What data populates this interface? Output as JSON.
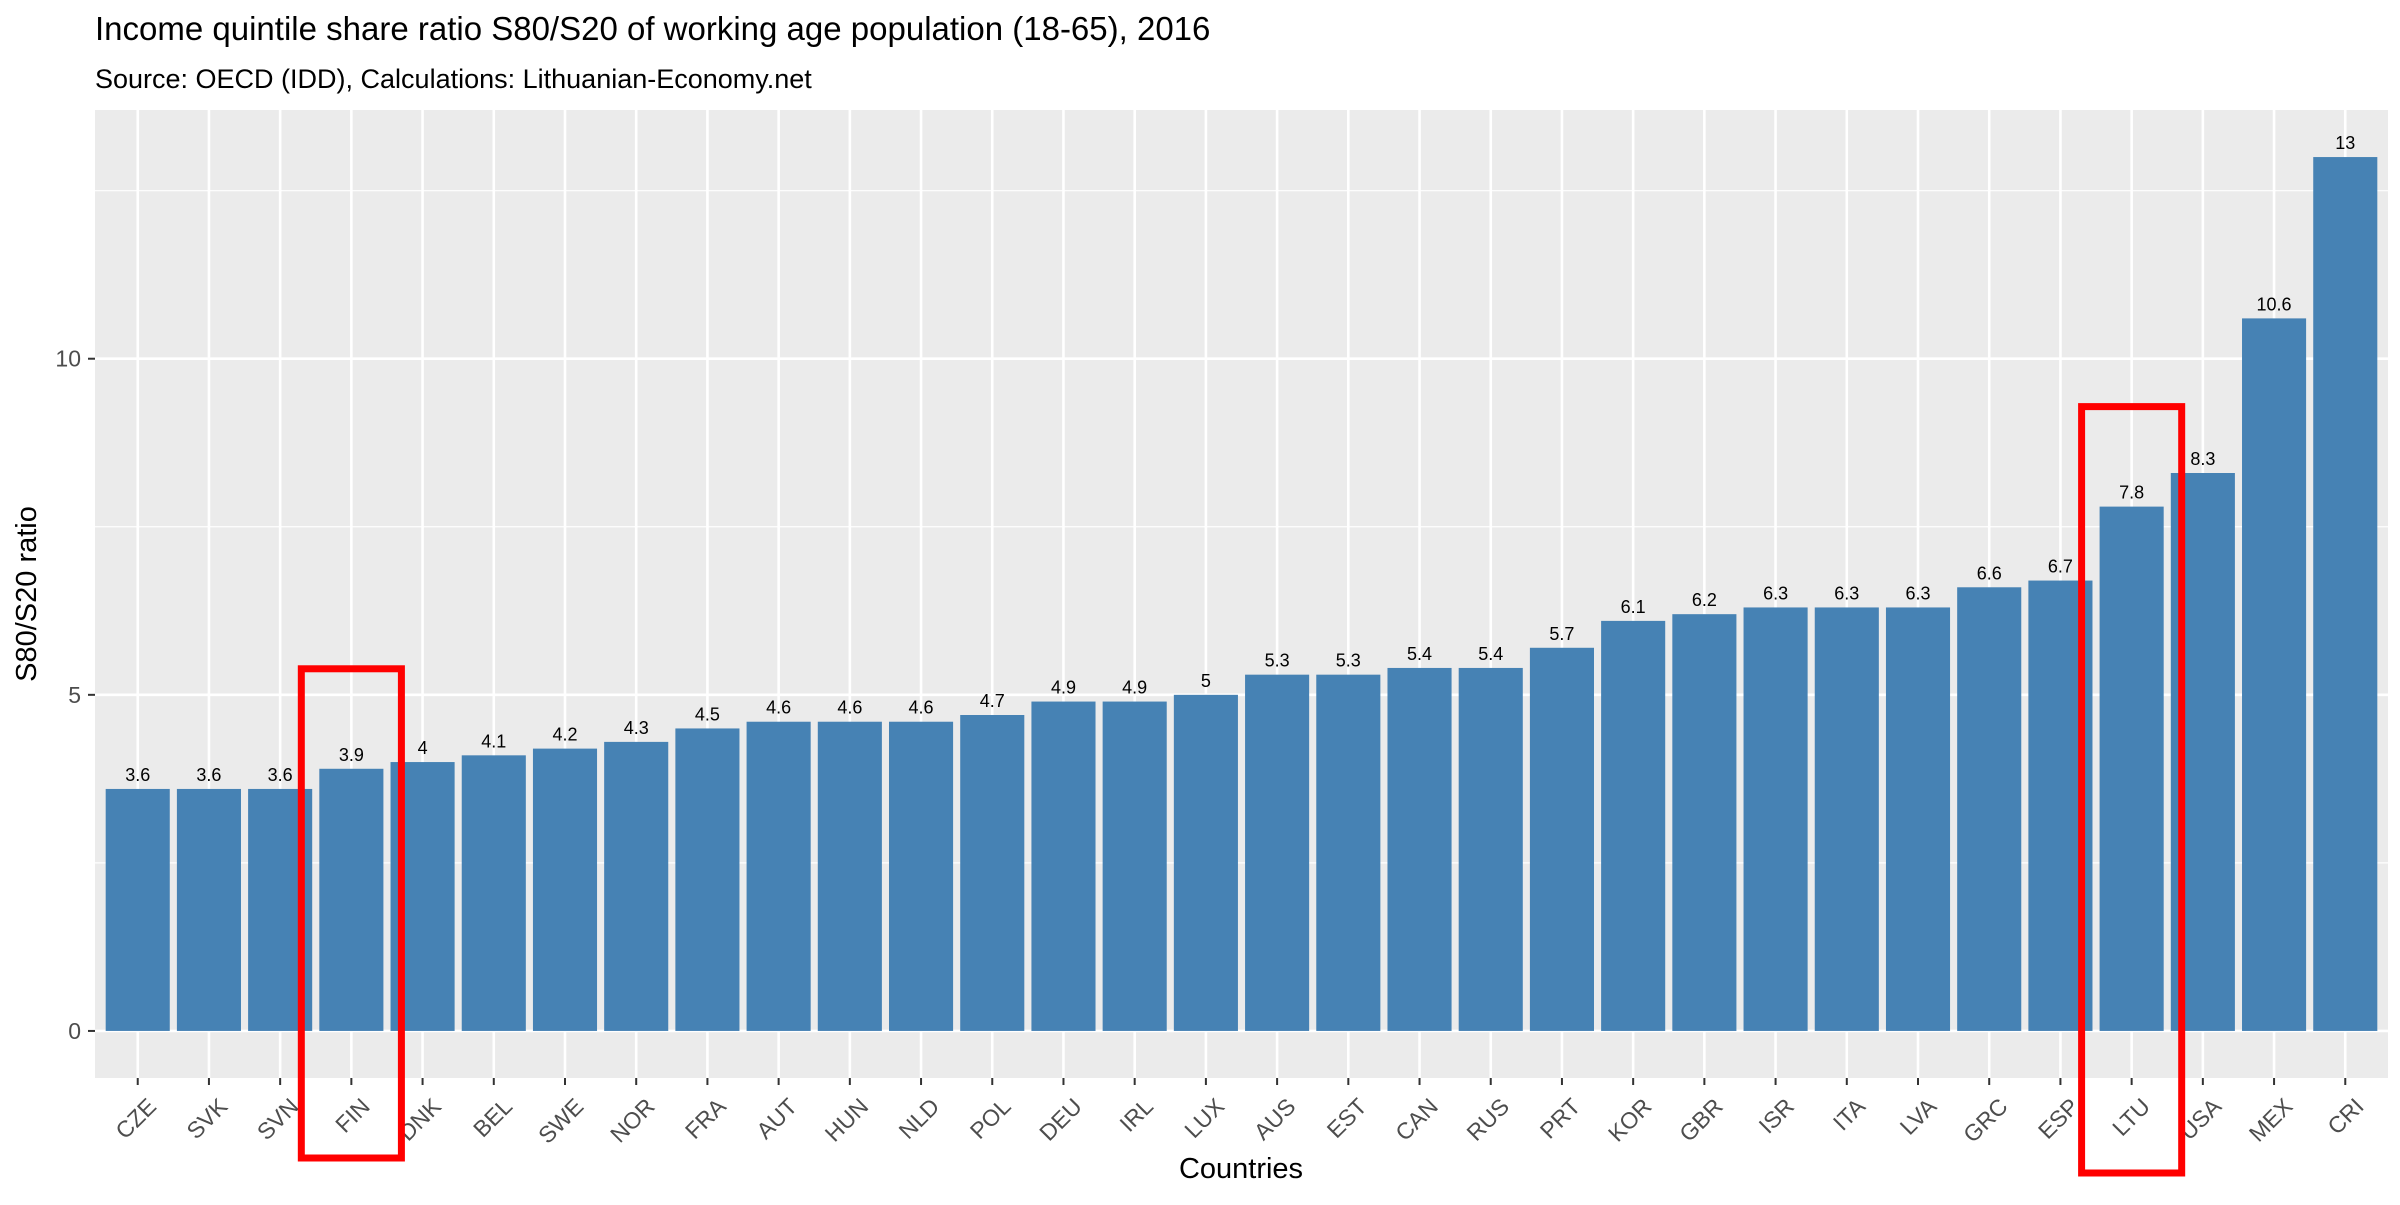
{
  "chart_data": {
    "type": "bar",
    "title": "Income quintile share ratio S80/S20 of working age population (18-65), 2016",
    "subtitle": "Source: OECD (IDD), Calculations: Lithuanian-Economy.net",
    "xlabel": "Countries",
    "ylabel": "S80/S20 ratio",
    "categories": [
      "CZE",
      "SVK",
      "SVN",
      "FIN",
      "DNK",
      "BEL",
      "SWE",
      "NOR",
      "FRA",
      "AUT",
      "HUN",
      "NLD",
      "POL",
      "DEU",
      "IRL",
      "LUX",
      "AUS",
      "EST",
      "CAN",
      "RUS",
      "PRT",
      "KOR",
      "GBR",
      "ISR",
      "ITA",
      "LVA",
      "GRC",
      "ESP",
      "LTU",
      "USA",
      "MEX",
      "CRI"
    ],
    "values": [
      3.6,
      3.6,
      3.6,
      3.9,
      4,
      4.1,
      4.2,
      4.3,
      4.5,
      4.6,
      4.6,
      4.6,
      4.7,
      4.9,
      4.9,
      5,
      5.3,
      5.3,
      5.4,
      5.4,
      5.7,
      6.1,
      6.2,
      6.3,
      6.3,
      6.3,
      6.6,
      6.7,
      7.8,
      8.3,
      10.6,
      13
    ],
    "data_labels": [
      "3.6",
      "3.6",
      "3.6",
      "3.9",
      "4",
      "4.1",
      "4.2",
      "4.3",
      "4.5",
      "4.6",
      "4.6",
      "4.6",
      "4.7",
      "4.9",
      "4.9",
      "5",
      "5.3",
      "5.3",
      "5.4",
      "5.4",
      "5.7",
      "6.1",
      "6.2",
      "6.3",
      "6.3",
      "6.3",
      "6.6",
      "6.7",
      "7.8",
      "8.3",
      "10.6",
      "13"
    ],
    "yticks": [
      0,
      5,
      10
    ],
    "ylim": [
      -0.7,
      13.7
    ],
    "grid": true,
    "highlighted": [
      "FIN",
      "LTU"
    ],
    "colors": {
      "bar": "#4682b4",
      "panel": "#ebebeb",
      "grid": "#ffffff",
      "highlight": "#ff0000"
    }
  }
}
